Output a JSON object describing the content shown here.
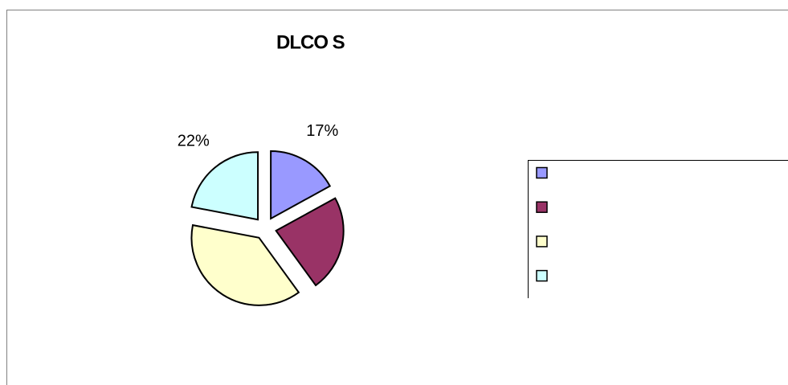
{
  "chart_data": {
    "type": "pie",
    "title": "DLCO S",
    "categories": [
      null,
      null,
      null,
      null
    ],
    "values": [
      17,
      23,
      38,
      22
    ],
    "value_labels": [
      "17%",
      null,
      null,
      "22%"
    ],
    "colors": [
      "#9999ff",
      "#993366",
      "#ffffcc",
      "#ccffff"
    ],
    "legend": "right"
  }
}
